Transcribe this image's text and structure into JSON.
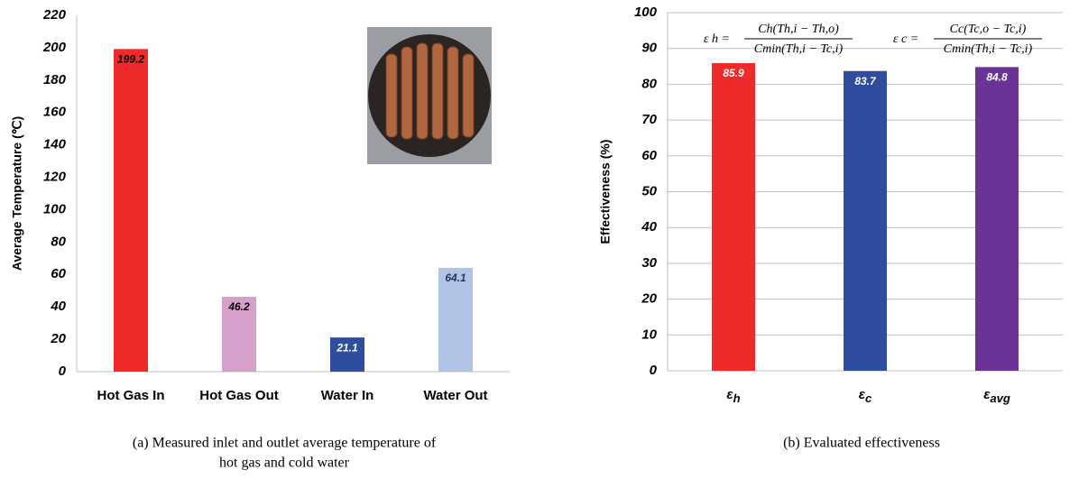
{
  "charts": [
    {
      "type": "bar",
      "ylabel": "Average Temperature (℃)",
      "categories": [
        "Hot Gas In",
        "Hot Gas Out",
        "Water In",
        "Water Out"
      ],
      "values": [
        199.2,
        46.2,
        21.1,
        64.1
      ],
      "colors": [
        "#ee2a2a",
        "#d6a0cb",
        "#2f4d9e",
        "#b1c4e5"
      ],
      "value_label_colors": [
        "#000000",
        "#000000",
        "#ffffff",
        "#1f3864"
      ],
      "ylim": [
        0,
        220
      ],
      "yticks": [
        0,
        20,
        40,
        60,
        80,
        100,
        120,
        140,
        160,
        180,
        200,
        220
      ],
      "grid": false,
      "caption": [
        "(a) Measured inlet and outlet average temperature of",
        "hot gas and cold water"
      ]
    },
    {
      "type": "bar",
      "ylabel": "Effectiveness (%)",
      "categories": [
        "εh",
        "εc",
        "εavg"
      ],
      "values": [
        85.9,
        83.7,
        84.8
      ],
      "colors": [
        "#ee2a2a",
        "#2f4d9e",
        "#6a3496"
      ],
      "value_label_colors": [
        "#ffffff",
        "#ffffff",
        "#ffffff"
      ],
      "ylim": [
        0,
        100
      ],
      "yticks": [
        0,
        10,
        20,
        30,
        40,
        50,
        60,
        70,
        80,
        90,
        100
      ],
      "grid": true,
      "annotations": [
        {
          "lhs": "ε h =",
          "numerator": "Ch(Th,i − Th,o)",
          "denominator": "Cmin(Th,i − Tc,i)"
        },
        {
          "lhs": "ε c =",
          "numerator": "Cc(Tc,o − Tc,i)",
          "denominator": "Cmin(Th,i − Tc,i)"
        }
      ],
      "caption": [
        "(b) Evaluated effectiveness"
      ]
    }
  ]
}
